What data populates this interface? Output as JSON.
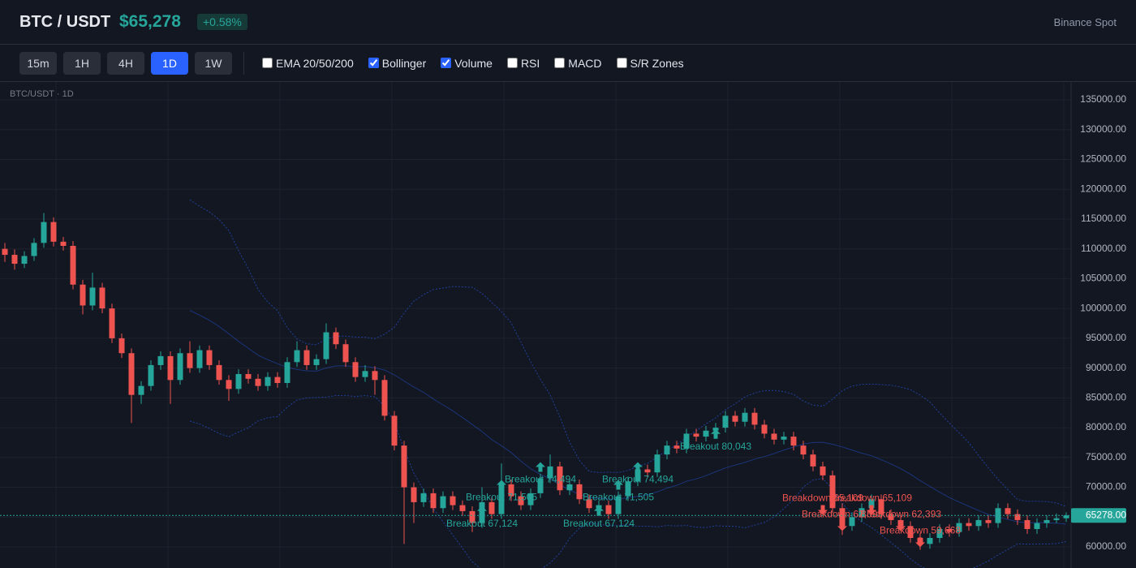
{
  "header": {
    "symbol": "BTC / USDT",
    "price": "$65,278",
    "change": "+0.58%",
    "exchange": "Binance Spot"
  },
  "toolbar": {
    "timeframes": [
      "15m",
      "1H",
      "4H",
      "1D",
      "1W"
    ],
    "active": "1D",
    "indicators": [
      {
        "label": "EMA 20/50/200",
        "checked": false
      },
      {
        "label": "Bollinger",
        "checked": true
      },
      {
        "label": "Volume",
        "checked": true
      },
      {
        "label": "RSI",
        "checked": false
      },
      {
        "label": "MACD",
        "checked": false
      },
      {
        "label": "S/R Zones",
        "checked": false
      }
    ]
  },
  "chart_data": {
    "type": "candlestick",
    "title": "BTC/USDT · 1D",
    "up_color": "#26a69a",
    "down_color": "#ef5350",
    "bollinger": true,
    "grid": true,
    "ylim": [
      56460,
      138000
    ],
    "yticks": [
      {
        "value": 60000,
        "label": "60000.00"
      },
      {
        "value": 65000,
        "label": "65000.00"
      },
      {
        "value": 70000,
        "label": "70000.00"
      },
      {
        "value": 75000,
        "label": "75000.00"
      },
      {
        "value": 80000,
        "label": "80000.00"
      },
      {
        "value": 85000,
        "label": "85000.00"
      },
      {
        "value": 90000,
        "label": "90000.00"
      },
      {
        "value": 95000,
        "label": "95000.00"
      },
      {
        "value": 100000,
        "label": "100000.00"
      },
      {
        "value": 105000,
        "label": "105000.00"
      },
      {
        "value": 110000,
        "label": "110000.00"
      },
      {
        "value": 115000,
        "label": "115000.00"
      },
      {
        "value": 120000,
        "label": "120000.00"
      },
      {
        "value": 125000,
        "label": "125000.00"
      },
      {
        "value": 130000,
        "label": "130000.00"
      },
      {
        "value": 135000,
        "label": "135000.00"
      }
    ],
    "last_price": {
      "value": 65278,
      "label": "65278.00"
    },
    "ohlc": [
      [
        110000,
        111000,
        107800,
        109000
      ],
      [
        109000,
        109900,
        106500,
        107500
      ],
      [
        107500,
        109600,
        106800,
        108800
      ],
      [
        108800,
        111800,
        108000,
        111000
      ],
      [
        111000,
        116000,
        110200,
        114500
      ],
      [
        114500,
        115300,
        110400,
        111200
      ],
      [
        111200,
        112000,
        109700,
        110500
      ],
      [
        110500,
        111300,
        103200,
        104000
      ],
      [
        104000,
        104800,
        99000,
        100500
      ],
      [
        100500,
        106000,
        99700,
        103500
      ],
      [
        103500,
        104300,
        99200,
        100000
      ],
      [
        100000,
        100800,
        94200,
        95000
      ],
      [
        95000,
        95800,
        91700,
        92500
      ],
      [
        92500,
        93300,
        80800,
        85500
      ],
      [
        85500,
        87800,
        84000,
        87000
      ],
      [
        87000,
        91300,
        86200,
        90500
      ],
      [
        90500,
        92800,
        89700,
        92000
      ],
      [
        92000,
        92800,
        84000,
        88000
      ],
      [
        88000,
        93300,
        87200,
        92500
      ],
      [
        92500,
        94500,
        89200,
        90000
      ],
      [
        90000,
        93800,
        89200,
        93000
      ],
      [
        93000,
        93800,
        89700,
        90500
      ],
      [
        90500,
        91300,
        87200,
        88000
      ],
      [
        88000,
        88800,
        84500,
        86500
      ],
      [
        86500,
        89800,
        85700,
        89000
      ],
      [
        89000,
        89800,
        87400,
        88200
      ],
      [
        88200,
        89000,
        86200,
        87000
      ],
      [
        87000,
        89300,
        86200,
        88500
      ],
      [
        88500,
        89300,
        86700,
        87500
      ],
      [
        87500,
        91800,
        86700,
        91000
      ],
      [
        91000,
        94500,
        90200,
        93000
      ],
      [
        93000,
        93800,
        89700,
        90500
      ],
      [
        90500,
        92300,
        89700,
        91500
      ],
      [
        91500,
        97500,
        90700,
        96000
      ],
      [
        96000,
        96800,
        93200,
        94000
      ],
      [
        94000,
        94800,
        90200,
        91000
      ],
      [
        91000,
        91800,
        87700,
        88500
      ],
      [
        88500,
        90500,
        87700,
        89500
      ],
      [
        89500,
        90300,
        85500,
        88000
      ],
      [
        88000,
        88800,
        81200,
        82000
      ],
      [
        82000,
        82800,
        76200,
        77000
      ],
      [
        77000,
        77800,
        60500,
        70000
      ],
      [
        70000,
        70800,
        64000,
        67500
      ],
      [
        67500,
        69800,
        66700,
        69000
      ],
      [
        69000,
        69800,
        65700,
        66500
      ],
      [
        66500,
        69300,
        65700,
        68500
      ],
      [
        68500,
        69300,
        66200,
        67000
      ],
      [
        67000,
        67800,
        65200,
        66000
      ],
      [
        66000,
        66800,
        62500,
        64000
      ],
      [
        64000,
        70000,
        63200,
        67500
      ],
      [
        67500,
        68300,
        64700,
        65500
      ],
      [
        65500,
        74000,
        64700,
        70500
      ],
      [
        70500,
        71300,
        67700,
        68500
      ],
      [
        68500,
        69300,
        66200,
        67000
      ],
      [
        67000,
        69800,
        66200,
        69000
      ],
      [
        69000,
        72300,
        68200,
        71500
      ],
      [
        71500,
        75500,
        70700,
        73500
      ],
      [
        73500,
        74300,
        68700,
        69500
      ],
      [
        69500,
        71300,
        68700,
        70500
      ],
      [
        70500,
        71300,
        67200,
        68000
      ],
      [
        68000,
        68800,
        65700,
        66500
      ],
      [
        66500,
        67800,
        65700,
        67000
      ],
      [
        67000,
        67800,
        64700,
        65500
      ],
      [
        65500,
        69300,
        64700,
        68500
      ],
      [
        68500,
        71800,
        67700,
        71000
      ],
      [
        71000,
        73800,
        70200,
        73000
      ],
      [
        73000,
        73800,
        71700,
        72500
      ],
      [
        72500,
        76300,
        71700,
        75500
      ],
      [
        75500,
        77800,
        74700,
        77000
      ],
      [
        77000,
        77800,
        75700,
        76500
      ],
      [
        76500,
        79800,
        75700,
        79000
      ],
      [
        79000,
        79800,
        77700,
        78500
      ],
      [
        78500,
        80300,
        77700,
        79500
      ],
      [
        79500,
        80800,
        78700,
        80000
      ],
      [
        80000,
        82800,
        79200,
        82000
      ],
      [
        82000,
        82800,
        80200,
        81000
      ],
      [
        81000,
        83300,
        80200,
        82500
      ],
      [
        82500,
        83300,
        79700,
        80500
      ],
      [
        80500,
        81300,
        78200,
        79000
      ],
      [
        79000,
        79800,
        77200,
        78000
      ],
      [
        78000,
        79300,
        77200,
        78500
      ],
      [
        78500,
        79300,
        76200,
        77000
      ],
      [
        77000,
        77800,
        74700,
        75500
      ],
      [
        75500,
        76300,
        72700,
        73500
      ],
      [
        73500,
        74300,
        71200,
        72000
      ],
      [
        72000,
        72800,
        65700,
        66500
      ],
      [
        66500,
        67300,
        62000,
        63500
      ],
      [
        63500,
        65800,
        62700,
        65000
      ],
      [
        65000,
        67300,
        64200,
        66500
      ],
      [
        66500,
        68800,
        65700,
        68000
      ],
      [
        68000,
        68800,
        64700,
        65500
      ],
      [
        65500,
        66300,
        63700,
        64500
      ],
      [
        64500,
        65300,
        62700,
        63500
      ],
      [
        63500,
        64300,
        60700,
        61500
      ],
      [
        61500,
        62300,
        59500,
        60500
      ],
      [
        60500,
        62300,
        59700,
        61500
      ],
      [
        61500,
        63800,
        60700,
        63000
      ],
      [
        63000,
        63800,
        61700,
        62500
      ],
      [
        62500,
        64800,
        61700,
        64000
      ],
      [
        64000,
        64800,
        62700,
        63500
      ],
      [
        63500,
        65300,
        62700,
        64500
      ],
      [
        64500,
        65300,
        63200,
        64000
      ],
      [
        64000,
        67300,
        63200,
        66500
      ],
      [
        66500,
        67300,
        64700,
        65500
      ],
      [
        65500,
        66300,
        63700,
        64500
      ],
      [
        64500,
        65300,
        62200,
        63000
      ],
      [
        63000,
        64800,
        62200,
        64000
      ],
      [
        64000,
        65300,
        63200,
        64500
      ],
      [
        64500,
        65600,
        64000,
        64800
      ],
      [
        64800,
        65800,
        64200,
        65278
      ]
    ],
    "signals": [
      null,
      null,
      null,
      null,
      null,
      null,
      null,
      null,
      null,
      null,
      null,
      null,
      null,
      null,
      null,
      null,
      null,
      null,
      null,
      null,
      null,
      null,
      null,
      null,
      null,
      null,
      null,
      null,
      null,
      null,
      null,
      null,
      null,
      null,
      null,
      null,
      null,
      null,
      null,
      null,
      null,
      null,
      null,
      null,
      null,
      null,
      null,
      null,
      null,
      {
        "label": "Breakout 67,124",
        "value": 67124,
        "side": "up"
      },
      null,
      {
        "label": "Breakout 71,505",
        "value": 71505,
        "side": "up"
      },
      null,
      null,
      null,
      {
        "label": "Breakout 74,494",
        "value": 74494,
        "side": "up"
      },
      null,
      null,
      null,
      null,
      null,
      {
        "label": "Breakout 67,124",
        "value": 67124,
        "side": "up"
      },
      null,
      {
        "label": "Breakout 71,505",
        "value": 71505,
        "side": "up"
      },
      null,
      {
        "label": "Breakout 74,494",
        "value": 74494,
        "side": "up"
      },
      null,
      null,
      null,
      null,
      null,
      null,
      null,
      {
        "label": "Breakout 80,043",
        "value": 80043,
        "side": "up"
      },
      null,
      null,
      null,
      null,
      null,
      null,
      null,
      null,
      null,
      null,
      {
        "label": "Breakdown 65,109",
        "value": 65109,
        "side": "down"
      },
      null,
      {
        "label": "Breakdown 62,393",
        "value": 62393,
        "side": "down"
      },
      null,
      null,
      {
        "label": "Breakdown 65,109",
        "value": 65109,
        "side": "down"
      },
      null,
      null,
      {
        "label": "Breakdown 62,393",
        "value": 62393,
        "side": "down"
      },
      null,
      {
        "label": "Breakdown 59,668",
        "value": 59668,
        "side": "down"
      },
      null,
      null,
      null,
      null,
      null,
      null,
      null,
      null,
      null,
      null,
      null,
      null,
      null,
      null,
      null
    ]
  }
}
